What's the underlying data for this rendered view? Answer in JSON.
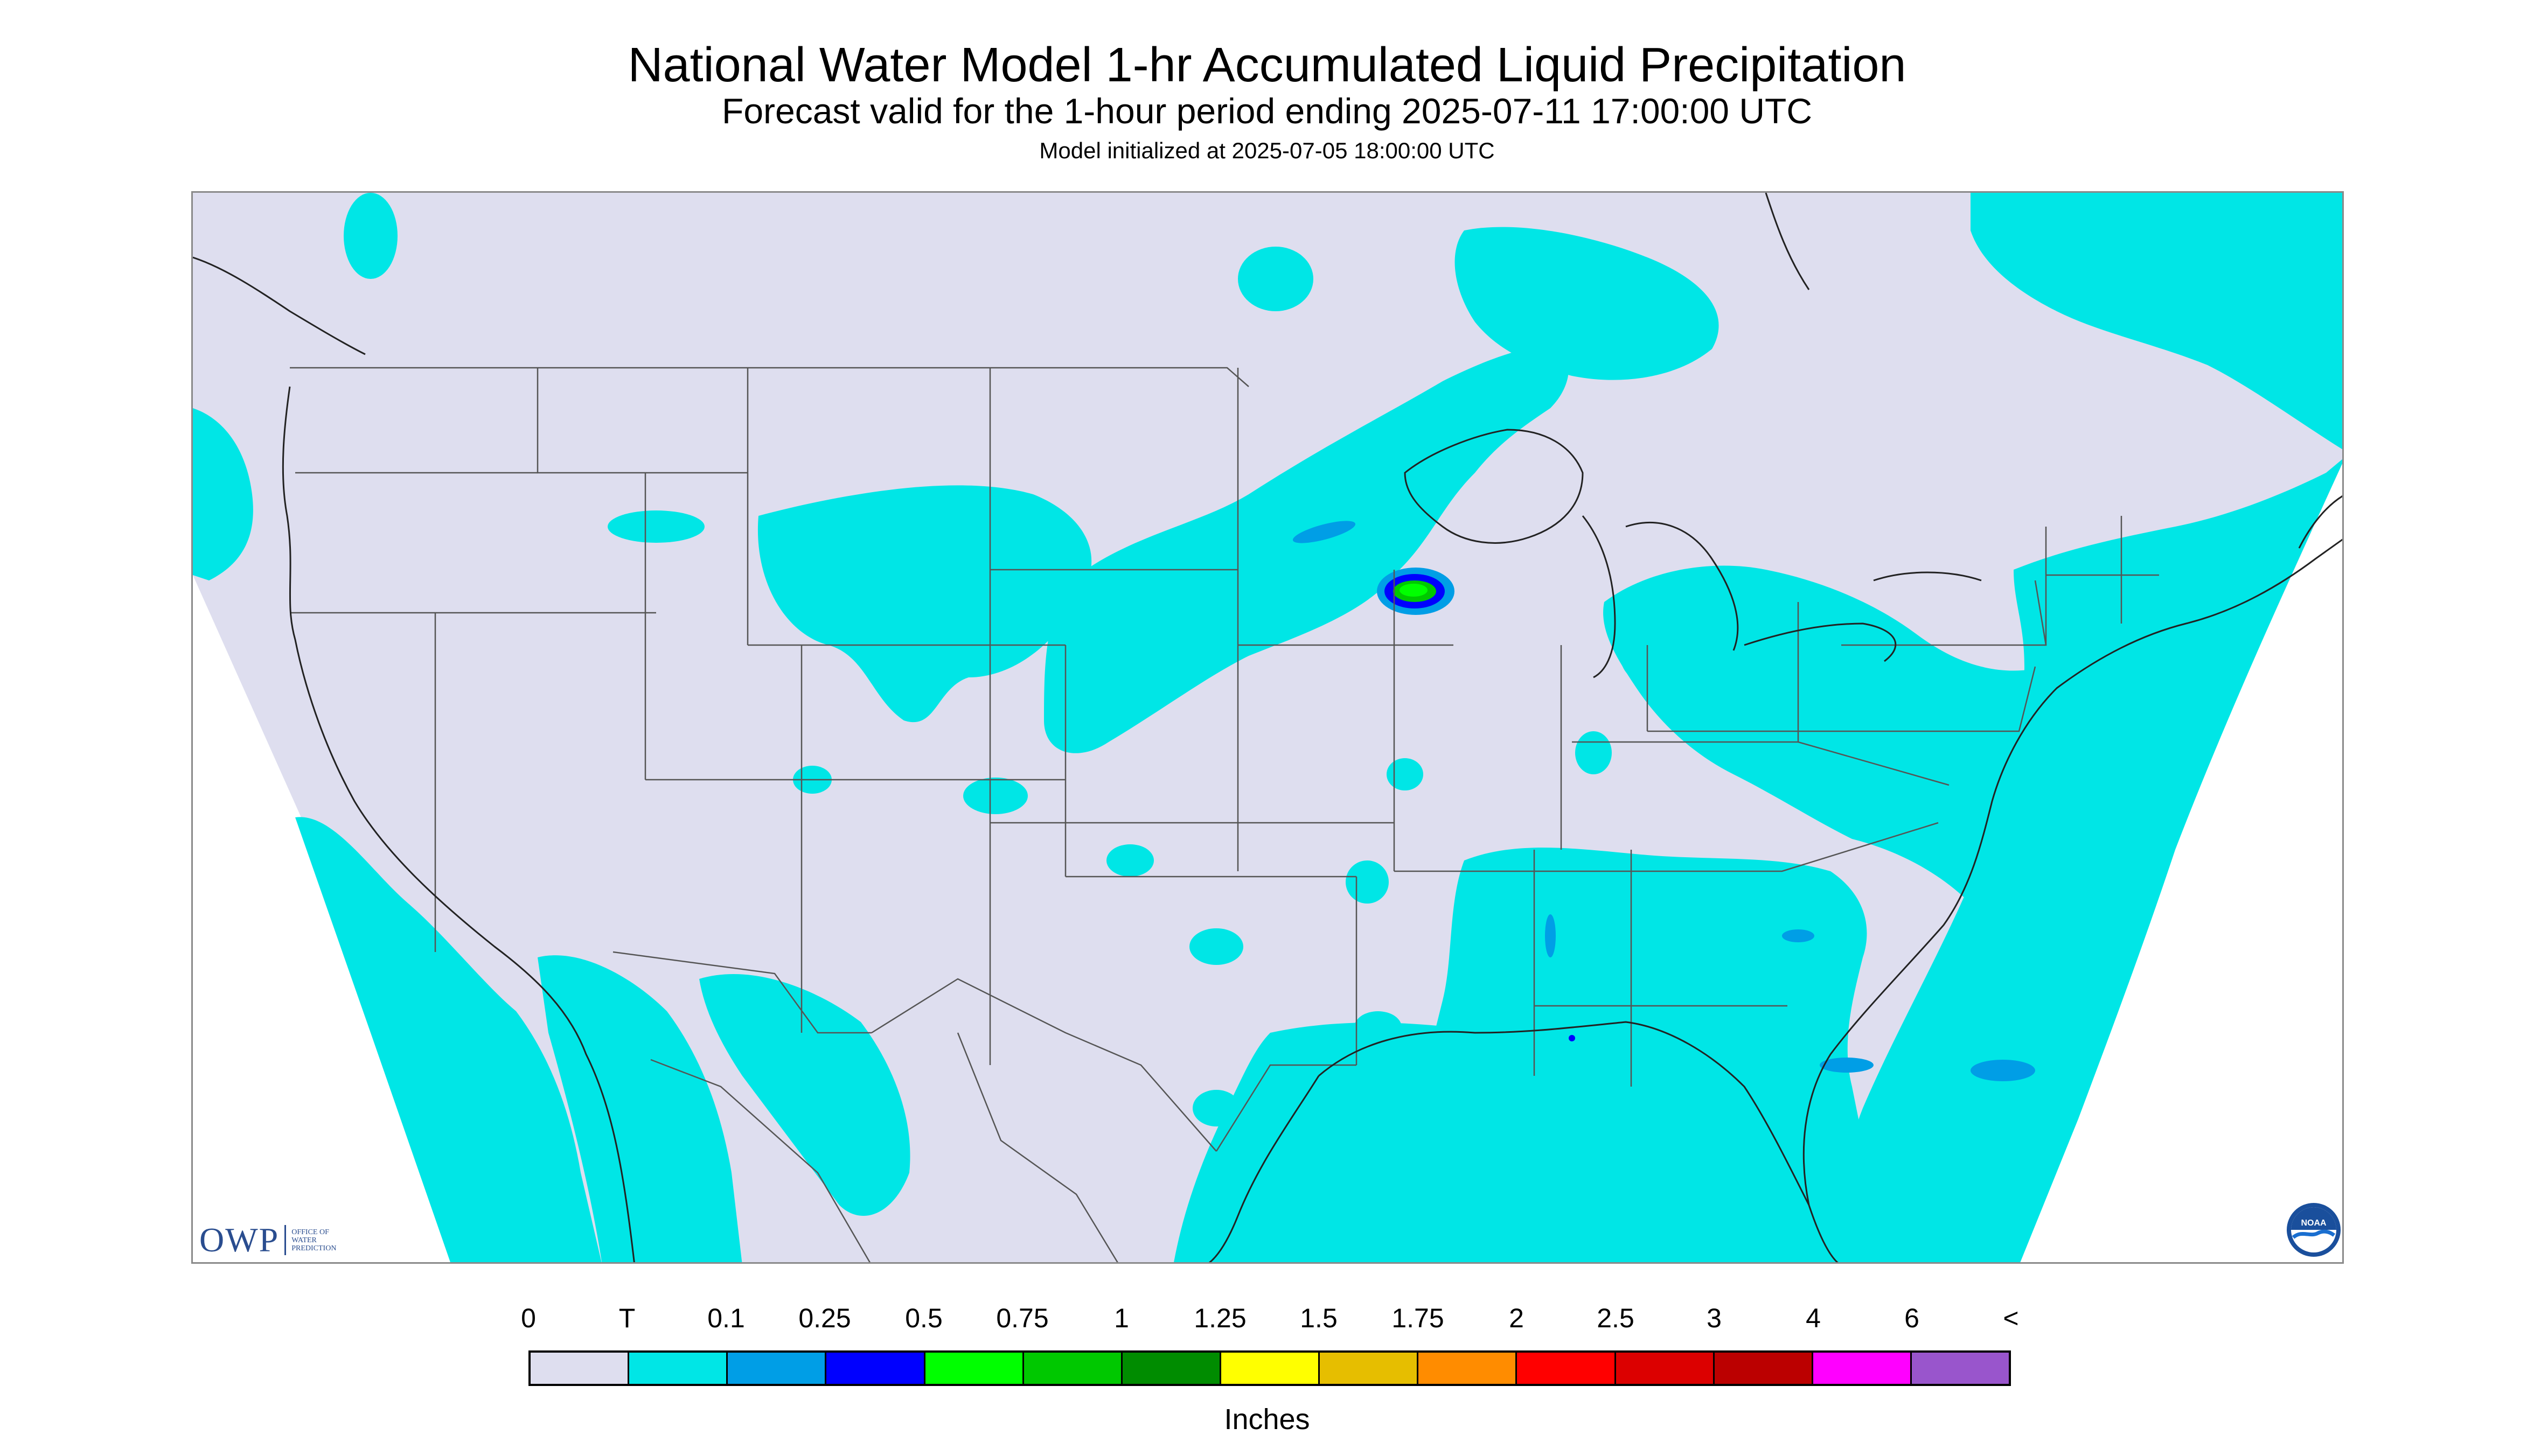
{
  "header": {
    "title": "National Water Model 1-hr Accumulated Liquid Precipitation",
    "subtitle": "Forecast valid for the 1-hour period ending 2025-07-11 17:00:00 UTC",
    "init": "Model initialized at 2025-07-05 18:00:00 UTC"
  },
  "map": {
    "background_color": "#dedeef",
    "outside_color": "#ffffff",
    "border_color": "#333333",
    "icons": [
      "map-background",
      "precip-field",
      "state-boundaries",
      "coastlines"
    ]
  },
  "legend": {
    "labels": [
      "0",
      "T",
      "0.1",
      "0.25",
      "0.5",
      "0.75",
      "1",
      "1.25",
      "1.5",
      "1.75",
      "2",
      "2.5",
      "3",
      "4",
      "6",
      "<"
    ],
    "colors": [
      "#dedeef",
      "#00e6e6",
      "#009ee6",
      "#0000ff",
      "#00ff00",
      "#00c800",
      "#008c00",
      "#ffff00",
      "#e6be00",
      "#ff8c00",
      "#ff0000",
      "#dc0000",
      "#bb0000",
      "#ff00ff",
      "#9955cc"
    ],
    "units": "Inches"
  },
  "logos": {
    "owp_mark": "OWP",
    "owp_line1": "OFFICE OF",
    "owp_line2": "WATER",
    "owp_line3": "PREDICTION",
    "noaa_mark": "NOAA",
    "icons": [
      "owp-logo",
      "noaa-logo"
    ]
  }
}
